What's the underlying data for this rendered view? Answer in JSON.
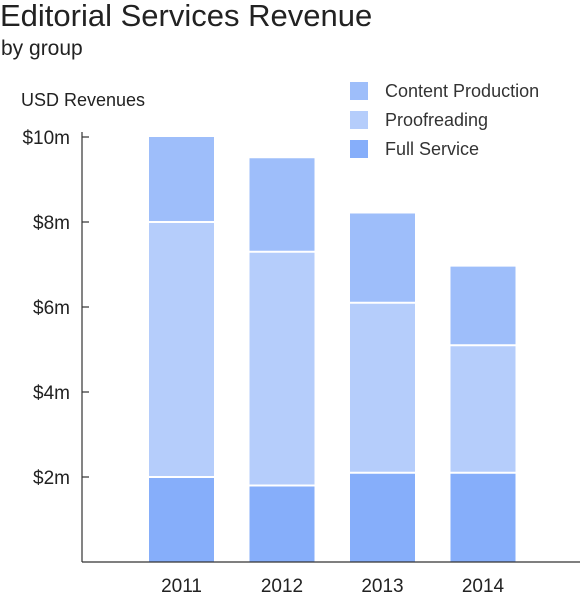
{
  "chart_data": {
    "type": "bar",
    "stacked": true,
    "title": "Editorial Services Revenue",
    "subtitle": "by group",
    "ylabel": "USD Revenues",
    "xlabel": "",
    "categories": [
      "2011",
      "2012",
      "2013",
      "2014"
    ],
    "ylim": [
      0,
      10
    ],
    "yticks": [
      {
        "value": 2,
        "label": "$2m"
      },
      {
        "value": 4,
        "label": "$4m"
      },
      {
        "value": 6,
        "label": "$6m"
      },
      {
        "value": 8,
        "label": "$8m"
      },
      {
        "value": 10,
        "label": "$10m"
      }
    ],
    "series": [
      {
        "name": "Full Service",
        "color": "#86aefa",
        "values": [
          2.0,
          1.8,
          2.1,
          2.1
        ]
      },
      {
        "name": "Proofreading",
        "color": "#b5cdfb",
        "values": [
          6.0,
          5.5,
          4.0,
          3.0
        ]
      },
      {
        "name": "Content Production",
        "color": "#9ebefa",
        "values": [
          2.0,
          2.2,
          2.1,
          1.85
        ]
      }
    ],
    "legend": {
      "position": "top-right",
      "items": [
        {
          "label": "Content Production",
          "color": "#9ebefa"
        },
        {
          "label": "Proofreading",
          "color": "#b5cdfb"
        },
        {
          "label": "Full Service",
          "color": "#86aefa"
        }
      ]
    },
    "grid": false
  }
}
